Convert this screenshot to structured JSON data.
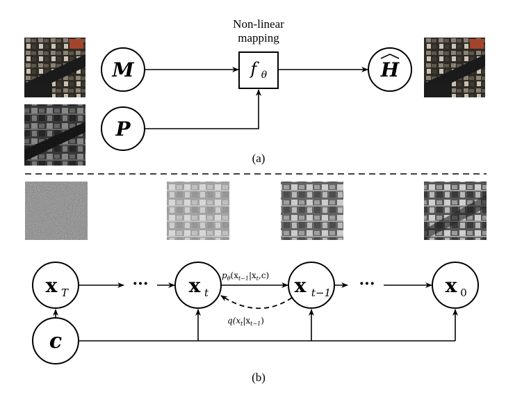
{
  "panel_a": {
    "caption": "(a)",
    "mapping_label_line1": "Non-linear",
    "mapping_label_line2": "mapping",
    "node_m": "M",
    "node_p": "P",
    "node_f": "f",
    "node_f_sub": "θ",
    "node_h": "H",
    "node_h_hat": "^"
  },
  "panel_b": {
    "caption": "(b)",
    "node_xT": "x",
    "node_xT_sub": "T",
    "node_xt": "x",
    "node_xt_sub": "t",
    "node_xt1": "x",
    "node_xt1_sub": "t−1",
    "node_x0": "x",
    "node_x0_sub": "0",
    "node_c": "c",
    "ellipsis_left": "···",
    "ellipsis_right": "···",
    "p_label_p": "p",
    "p_label_sub": "θ",
    "p_label_body": "(x",
    "p_label_body_sub": "t−1",
    "p_label_rest": "|x",
    "p_label_rest_sub": "t",
    "p_label_end": ",c)",
    "q_label_q": "q(x",
    "q_label_sub1": "t",
    "q_label_mid": "|x",
    "q_label_sub2": "t−1",
    "q_label_end": ")"
  },
  "colors": {
    "stroke": "#000000",
    "background": "#ffffff"
  }
}
